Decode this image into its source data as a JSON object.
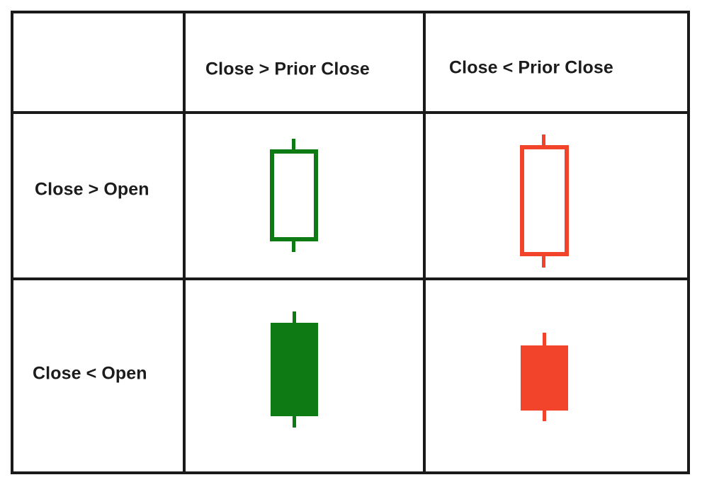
{
  "table": {
    "column_headers": [
      "",
      "Close > Prior Close",
      "Close < Prior Close"
    ],
    "row_headers": [
      "Close > Open",
      "Close < Open"
    ]
  },
  "candles": [
    {
      "row": 0,
      "col": 0,
      "color": "#0e7a14",
      "fill": "hollow",
      "icon": "hollow-green-candle-icon"
    },
    {
      "row": 0,
      "col": 1,
      "color": "#f2442a",
      "fill": "hollow",
      "icon": "hollow-red-candle-icon"
    },
    {
      "row": 1,
      "col": 0,
      "color": "#0e7a14",
      "fill": "filled",
      "icon": "filled-green-candle-icon"
    },
    {
      "row": 1,
      "col": 1,
      "color": "#f2442a",
      "fill": "filled",
      "icon": "filled-red-candle-icon"
    }
  ],
  "colors": {
    "grid_line": "#1a1a1a",
    "green": "#0e7a14",
    "red": "#f2442a"
  }
}
